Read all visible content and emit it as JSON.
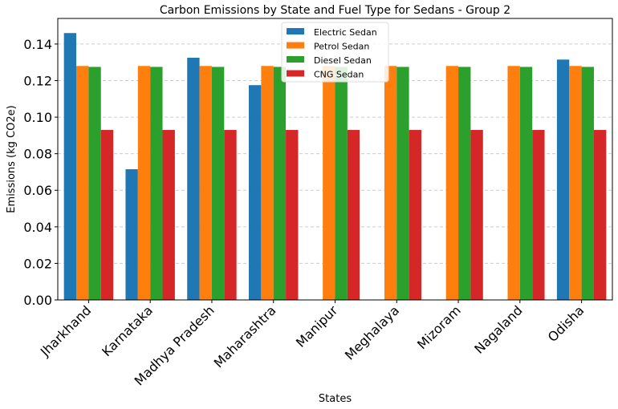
{
  "chart_data": {
    "type": "bar",
    "title": "Carbon Emissions by State and Fuel Type for Sedans - Group 2",
    "xlabel": "States",
    "ylabel": "Emissions (kg CO2e)",
    "ylim": [
      0,
      0.154
    ],
    "yticks": [
      0.0,
      0.02,
      0.04,
      0.06,
      0.08,
      0.1,
      0.12,
      0.14
    ],
    "ytick_labels": [
      "0.00",
      "0.02",
      "0.04",
      "0.06",
      "0.08",
      "0.10",
      "0.12",
      "0.14"
    ],
    "grid": true,
    "legend_position": "top-center",
    "categories": [
      "Jharkhand",
      "Karnataka",
      "Madhya Pradesh",
      "Maharashtra",
      "Manipur",
      "Meghalaya",
      "Mizoram",
      "Nagaland",
      "Odisha"
    ],
    "series": [
      {
        "name": "Electric Sedan",
        "color": "#1f77b4",
        "values": [
          0.146,
          0.0715,
          0.1325,
          0.1175,
          0,
          0,
          0,
          0,
          0.1315
        ]
      },
      {
        "name": "Petrol Sedan",
        "color": "#ff7f0e",
        "values": [
          0.128,
          0.128,
          0.128,
          0.128,
          0.128,
          0.128,
          0.128,
          0.128,
          0.128
        ]
      },
      {
        "name": "Diesel Sedan",
        "color": "#2ca02c",
        "values": [
          0.1275,
          0.1275,
          0.1275,
          0.1275,
          0.1275,
          0.1275,
          0.1275,
          0.1275,
          0.1275
        ]
      },
      {
        "name": "CNG Sedan",
        "color": "#d62728",
        "values": [
          0.093,
          0.093,
          0.093,
          0.093,
          0.093,
          0.093,
          0.093,
          0.093,
          0.093
        ]
      }
    ]
  }
}
